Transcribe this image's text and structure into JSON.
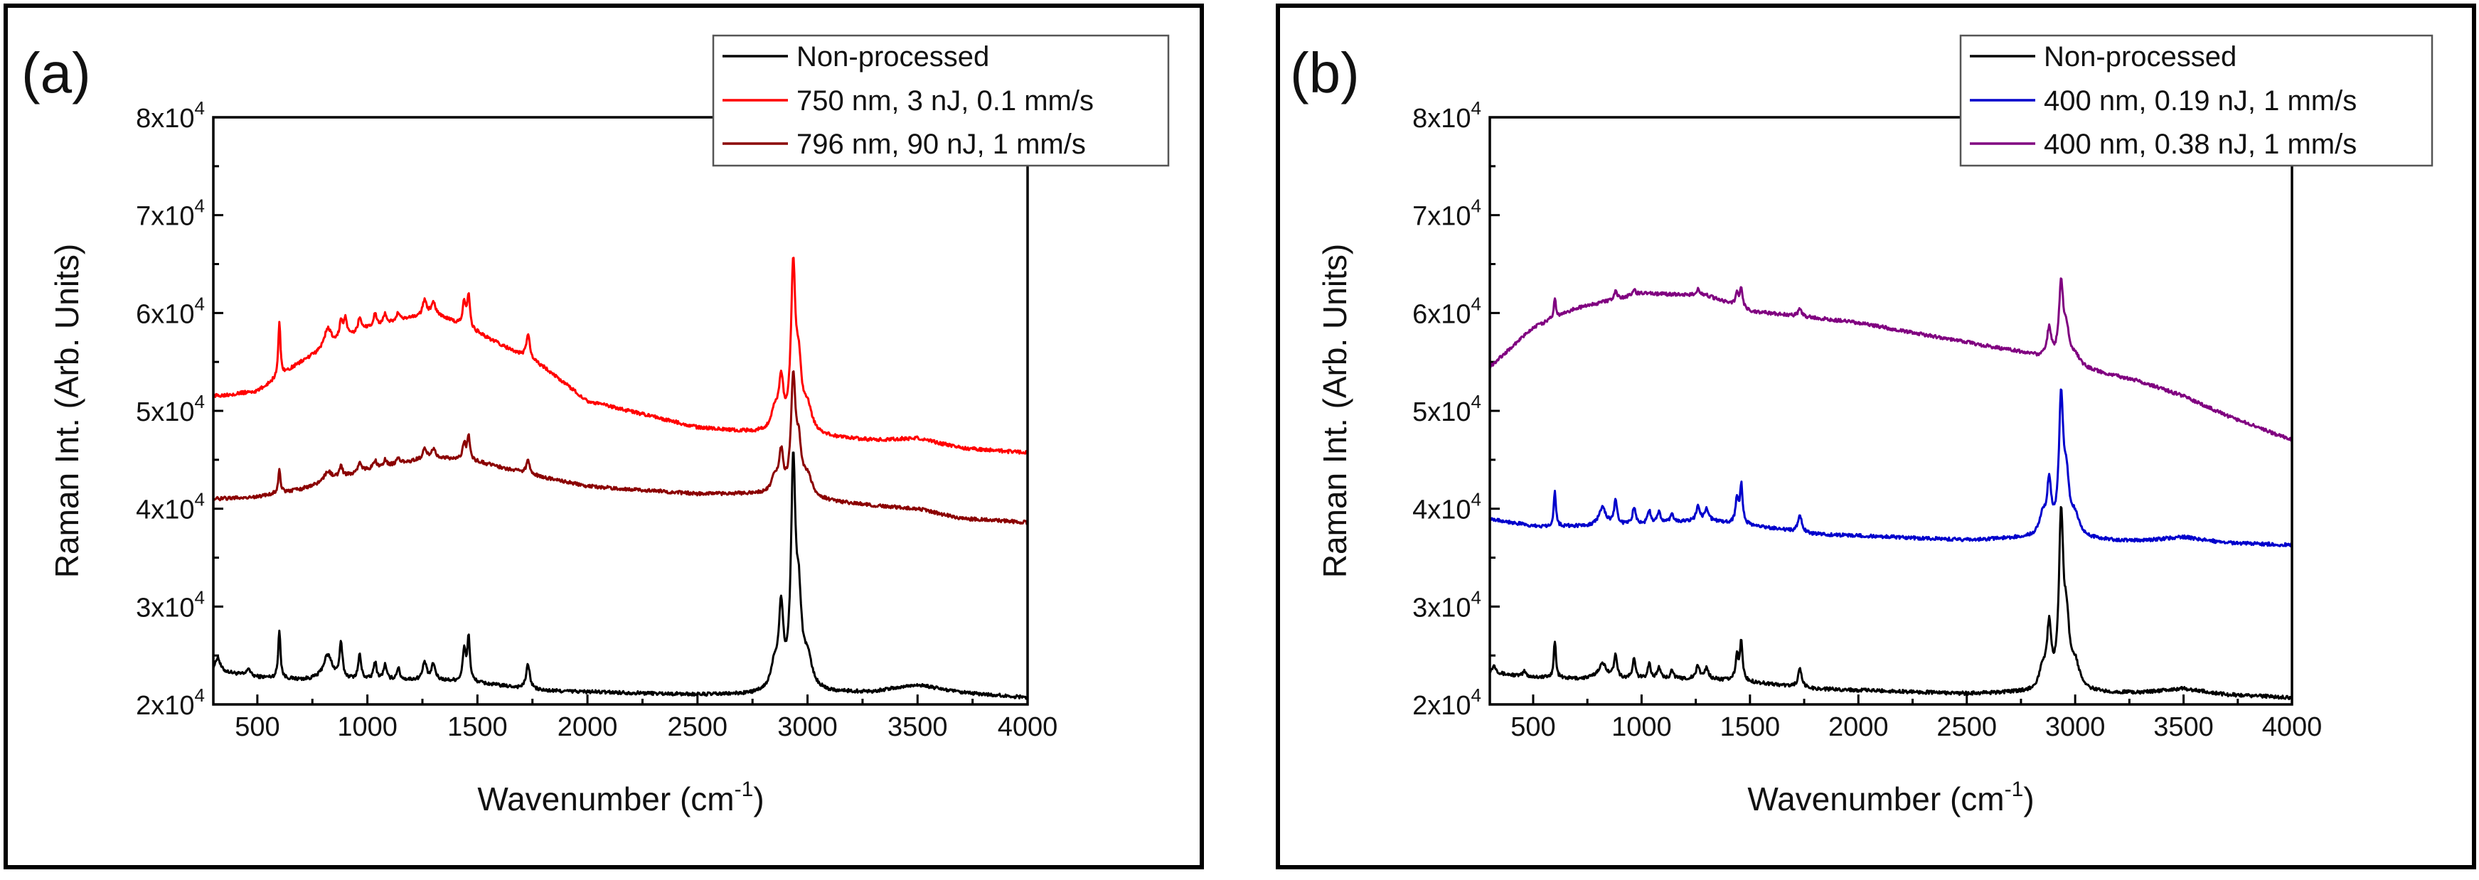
{
  "chart_data": [
    {
      "panel_label": "(a)",
      "type": "line",
      "xlabel": "Wavenumber (cm",
      "xlabel_sup": "-1",
      "xlabel_end": ")",
      "ylabel": "Raman Int. (Arb. Units)",
      "xlim": [
        300,
        4000
      ],
      "ylim": [
        20000,
        80000
      ],
      "x_ticks": [
        500,
        1000,
        1500,
        2000,
        2500,
        3000,
        3500,
        4000
      ],
      "x_tick_labels": [
        "500",
        "1000",
        "1500",
        "2000",
        "2500",
        "3000",
        "3500",
        "4000"
      ],
      "y_ticks": [
        20000,
        30000,
        40000,
        50000,
        60000,
        70000,
        80000
      ],
      "y_tick_labels": [
        {
          "mantissa": "2x10",
          "exp": "4"
        },
        {
          "mantissa": "3x10",
          "exp": "4"
        },
        {
          "mantissa": "4x10",
          "exp": "4"
        },
        {
          "mantissa": "5x10",
          "exp": "4"
        },
        {
          "mantissa": "6x10",
          "exp": "4"
        },
        {
          "mantissa": "7x10",
          "exp": "4"
        },
        {
          "mantissa": "8x10",
          "exp": "4"
        }
      ],
      "legend_position": "top-right",
      "series": [
        {
          "name": "Non-processed",
          "color": "#000000",
          "baseline": [
            [
              300,
              23500
            ],
            [
              500,
              22800
            ],
            [
              700,
              22500
            ],
            [
              1000,
              22500
            ],
            [
              1300,
              22500
            ],
            [
              1500,
              22200
            ],
            [
              1800,
              21400
            ],
            [
              2500,
              21000
            ],
            [
              2700,
              21000
            ],
            [
              3300,
              21300
            ],
            [
              3500,
              22000
            ],
            [
              3700,
              21200
            ],
            [
              4000,
              20700
            ]
          ],
          "peaks": [
            [
              320,
              1400,
              12
            ],
            [
              460,
              800,
              8
            ],
            [
              600,
              5000,
              6
            ],
            [
              820,
              2500,
              25
            ],
            [
              880,
              3500,
              8
            ],
            [
              965,
              2500,
              8
            ],
            [
              1035,
              1800,
              8
            ],
            [
              1080,
              1500,
              8
            ],
            [
              1140,
              1200,
              8
            ],
            [
              1260,
              1800,
              10
            ],
            [
              1300,
              1600,
              10
            ],
            [
              1440,
              3200,
              8
            ],
            [
              1460,
              4500,
              7
            ],
            [
              1730,
              2500,
              10
            ],
            [
              2850,
              2500,
              20
            ],
            [
              2880,
              8000,
              12
            ],
            [
              2935,
              22000,
              12
            ],
            [
              2960,
              8000,
              15
            ],
            [
              3000,
              3000,
              25
            ]
          ]
        },
        {
          "name": "750 nm, 3 nJ, 0.1 mm/s",
          "color": "#ff0000",
          "baseline": [
            [
              300,
              51500
            ],
            [
              500,
              52000
            ],
            [
              700,
              55000
            ],
            [
              1000,
              58500
            ],
            [
              1300,
              60000
            ],
            [
              1500,
              58000
            ],
            [
              1800,
              54500
            ],
            [
              2000,
              51000
            ],
            [
              2500,
              48300
            ],
            [
              2750,
              47800
            ],
            [
              3300,
              47000
            ],
            [
              3500,
              47200
            ],
            [
              3700,
              46200
            ],
            [
              4000,
              45700
            ]
          ],
          "peaks": [
            [
              600,
              5500,
              6
            ],
            [
              820,
              2000,
              20
            ],
            [
              880,
              2000,
              8
            ],
            [
              900,
              2000,
              8
            ],
            [
              965,
              1500,
              8
            ],
            [
              1035,
              1200,
              8
            ],
            [
              1080,
              1000,
              8
            ],
            [
              1140,
              800,
              8
            ],
            [
              1260,
              1500,
              10
            ],
            [
              1300,
              1200,
              10
            ],
            [
              1440,
              2500,
              8
            ],
            [
              1460,
              3500,
              7
            ],
            [
              1730,
              2500,
              10
            ],
            [
              2850,
              2000,
              20
            ],
            [
              2880,
              5000,
              12
            ],
            [
              2935,
              16000,
              12
            ],
            [
              2960,
              6000,
              15
            ],
            [
              3000,
              2500,
              25
            ]
          ]
        },
        {
          "name": "796 nm, 90 nJ, 1 mm/s",
          "color": "#8b0000",
          "baseline": [
            [
              300,
              41000
            ],
            [
              500,
              41200
            ],
            [
              700,
              42000
            ],
            [
              1000,
              44000
            ],
            [
              1300,
              45300
            ],
            [
              1500,
              44800
            ],
            [
              1800,
              43200
            ],
            [
              2000,
              42300
            ],
            [
              2500,
              41500
            ],
            [
              2750,
              41500
            ],
            [
              3300,
              40300
            ],
            [
              3500,
              40000
            ],
            [
              3700,
              39000
            ],
            [
              4000,
              38600
            ]
          ],
          "peaks": [
            [
              600,
              2500,
              6
            ],
            [
              820,
              1000,
              20
            ],
            [
              880,
              1200,
              8
            ],
            [
              965,
              1000,
              8
            ],
            [
              1035,
              800,
              8
            ],
            [
              1080,
              700,
              8
            ],
            [
              1140,
              600,
              8
            ],
            [
              1260,
              900,
              10
            ],
            [
              1300,
              800,
              10
            ],
            [
              1440,
              1800,
              8
            ],
            [
              1460,
              2500,
              7
            ],
            [
              1730,
              1300,
              10
            ],
            [
              2850,
              1500,
              20
            ],
            [
              2880,
              4000,
              12
            ],
            [
              2935,
              11500,
              12
            ],
            [
              2960,
              4500,
              15
            ],
            [
              3000,
              2000,
              25
            ]
          ]
        }
      ]
    },
    {
      "panel_label": "(b)",
      "type": "line",
      "xlabel": "Wavenumber (cm",
      "xlabel_sup": "-1",
      "xlabel_end": ")",
      "ylabel": "Raman Int. (Arb. Units)",
      "xlim": [
        300,
        4000
      ],
      "ylim": [
        20000,
        80000
      ],
      "x_ticks": [
        500,
        1000,
        1500,
        2000,
        2500,
        3000,
        3500,
        4000
      ],
      "x_tick_labels": [
        "500",
        "1000",
        "1500",
        "2000",
        "2500",
        "3000",
        "3500",
        "4000"
      ],
      "y_ticks": [
        20000,
        30000,
        40000,
        50000,
        60000,
        70000,
        80000
      ],
      "y_tick_labels": [
        {
          "mantissa": "2x10",
          "exp": "4"
        },
        {
          "mantissa": "3x10",
          "exp": "4"
        },
        {
          "mantissa": "4x10",
          "exp": "4"
        },
        {
          "mantissa": "5x10",
          "exp": "4"
        },
        {
          "mantissa": "6x10",
          "exp": "4"
        },
        {
          "mantissa": "7x10",
          "exp": "4"
        },
        {
          "mantissa": "8x10",
          "exp": "4"
        }
      ],
      "legend_position": "top-right",
      "series": [
        {
          "name": "Non-processed",
          "color": "#000000",
          "baseline": [
            [
              300,
              23200
            ],
            [
              500,
              22800
            ],
            [
              700,
              22600
            ],
            [
              1000,
              22600
            ],
            [
              1300,
              22600
            ],
            [
              1500,
              22300
            ],
            [
              1800,
              21600
            ],
            [
              2500,
              21100
            ],
            [
              2700,
              21200
            ],
            [
              3300,
              21200
            ],
            [
              3500,
              21600
            ],
            [
              3700,
              21000
            ],
            [
              4000,
              20700
            ]
          ],
          "peaks": [
            [
              320,
              800,
              12
            ],
            [
              460,
              500,
              8
            ],
            [
              600,
              3800,
              6
            ],
            [
              820,
              1500,
              25
            ],
            [
              880,
              2500,
              8
            ],
            [
              965,
              2000,
              8
            ],
            [
              1035,
              1600,
              8
            ],
            [
              1080,
              1200,
              8
            ],
            [
              1140,
              1000,
              8
            ],
            [
              1260,
              1300,
              10
            ],
            [
              1300,
              1100,
              10
            ],
            [
              1440,
              2500,
              8
            ],
            [
              1460,
              4000,
              7
            ],
            [
              1730,
              1800,
              10
            ],
            [
              2850,
              2000,
              20
            ],
            [
              2880,
              6000,
              12
            ],
            [
              2935,
              17000,
              12
            ],
            [
              2960,
              6000,
              15
            ],
            [
              3000,
              2500,
              25
            ]
          ]
        },
        {
          "name": "400 nm, 0.19 nJ, 1 mm/s",
          "color": "#0000cc",
          "baseline": [
            [
              300,
              39000
            ],
            [
              500,
              38200
            ],
            [
              700,
              38200
            ],
            [
              1000,
              38400
            ],
            [
              1300,
              38800
            ],
            [
              1500,
              38300
            ],
            [
              1800,
              37400
            ],
            [
              2500,
              36800
            ],
            [
              2750,
              37000
            ],
            [
              3300,
              36700
            ],
            [
              3500,
              37100
            ],
            [
              3700,
              36500
            ],
            [
              4000,
              36300
            ]
          ],
          "peaks": [
            [
              600,
              3500,
              6
            ],
            [
              820,
              1800,
              20
            ],
            [
              880,
              2500,
              8
            ],
            [
              965,
              1800,
              8
            ],
            [
              1035,
              1400,
              8
            ],
            [
              1080,
              1200,
              8
            ],
            [
              1140,
              1000,
              8
            ],
            [
              1260,
              1500,
              10
            ],
            [
              1300,
              1200,
              10
            ],
            [
              1440,
              2500,
              8
            ],
            [
              1460,
              4000,
              7
            ],
            [
              1730,
              1800,
              10
            ],
            [
              2850,
              2000,
              20
            ],
            [
              2880,
              5000,
              12
            ],
            [
              2935,
              13500,
              12
            ],
            [
              2960,
              5000,
              15
            ],
            [
              3000,
              2000,
              25
            ]
          ]
        },
        {
          "name": "400 nm, 0.38 nJ, 1 mm/s",
          "color": "#800080",
          "baseline": [
            [
              300,
              54500
            ],
            [
              500,
              58500
            ],
            [
              700,
              60500
            ],
            [
              1000,
              62000
            ],
            [
              1300,
              61800
            ],
            [
              1500,
              60200
            ],
            [
              1800,
              59500
            ],
            [
              2000,
              59000
            ],
            [
              2500,
              57000
            ],
            [
              2750,
              56000
            ],
            [
              3000,
              54500
            ],
            [
              3300,
              53000
            ],
            [
              3500,
              51500
            ],
            [
              3700,
              49500
            ],
            [
              4000,
              47000
            ]
          ],
          "peaks": [
            [
              600,
              2000,
              6
            ],
            [
              880,
              800,
              8
            ],
            [
              965,
              600,
              8
            ],
            [
              1260,
              600,
              10
            ],
            [
              1440,
              1500,
              8
            ],
            [
              1460,
              2000,
              7
            ],
            [
              1730,
              700,
              10
            ],
            [
              2880,
              3000,
              12
            ],
            [
              2935,
              7500,
              12
            ],
            [
              2960,
              3000,
              15
            ],
            [
              3000,
              1000,
              25
            ]
          ]
        }
      ]
    }
  ]
}
